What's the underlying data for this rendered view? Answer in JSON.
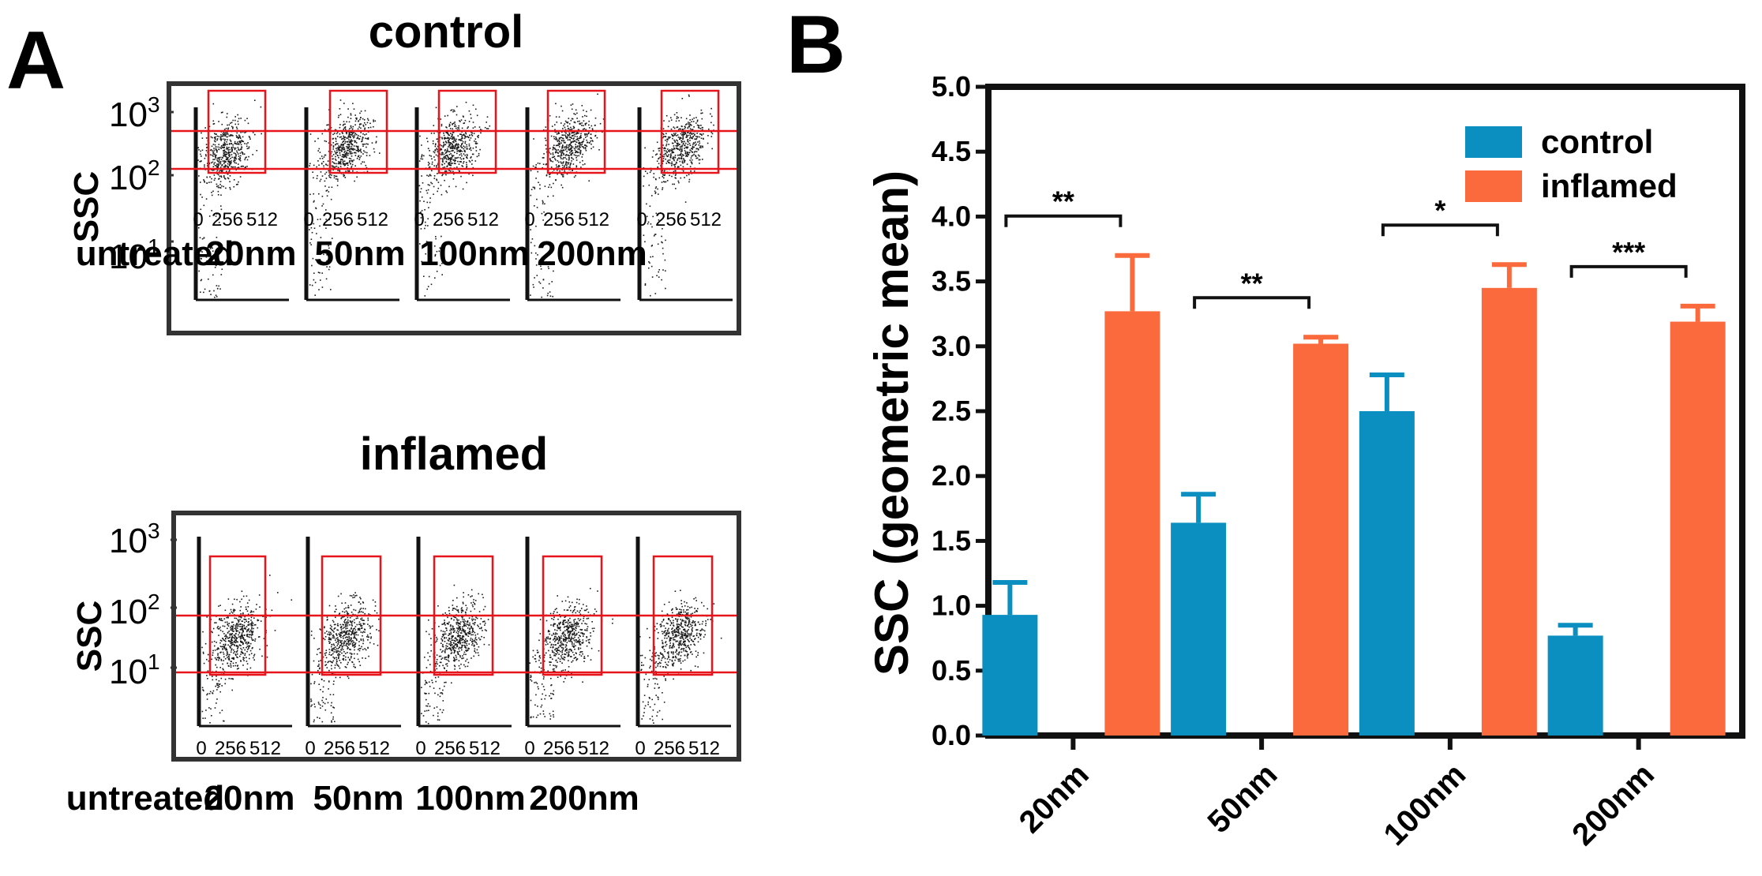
{
  "panel_a": {
    "letter": "A",
    "x_ticks": [
      "0",
      "256",
      "512"
    ],
    "y_ticks": [
      {
        "base": "10",
        "exp": "3"
      },
      {
        "base": "10",
        "exp": "2"
      },
      {
        "base": "10",
        "exp": "1"
      }
    ],
    "y_label": "SSC",
    "plots": [
      {
        "id": "control",
        "title": "control",
        "samples": [
          "untreated",
          "20nm",
          "50nm",
          "100nm",
          "200nm"
        ]
      },
      {
        "id": "inflamed",
        "title": "inflamed",
        "samples": [
          "untreated",
          "20nm",
          "50nm",
          "100nm",
          "200nm"
        ]
      }
    ]
  },
  "panel_b": {
    "letter": "B"
  },
  "colors": {
    "control": "#0a8fc0",
    "inflamed": "#fa6a3c",
    "gate": "#e8141b",
    "dots": "#1a1a1a"
  },
  "chart_data": [
    {
      "type": "bar",
      "categories": [
        "20nm",
        "50nm",
        "100nm",
        "200nm"
      ],
      "series": [
        {
          "name": "control",
          "values": [
            0.93,
            1.64,
            2.5,
            0.77
          ],
          "errors": [
            0.25,
            0.22,
            0.28,
            0.08
          ]
        },
        {
          "name": "inflamed",
          "values": [
            3.27,
            3.02,
            3.45,
            3.19
          ],
          "errors": [
            0.43,
            0.05,
            0.18,
            0.12
          ]
        }
      ],
      "significance": [
        {
          "category": "20nm",
          "label": "**"
        },
        {
          "category": "50nm",
          "label": "**"
        },
        {
          "category": "100nm",
          "label": "*"
        },
        {
          "category": "200nm",
          "label": "***"
        }
      ],
      "title": "",
      "xlabel": "",
      "ylabel": "SSC (geometric mean)",
      "ylim": [
        0,
        5.0
      ],
      "yticks": [
        "0.0",
        "0.5",
        "1.0",
        "1.5",
        "2.0",
        "2.5",
        "3.0",
        "3.5",
        "4.0",
        "4.5",
        "5.0"
      ],
      "legend_position": "top-right"
    }
  ]
}
